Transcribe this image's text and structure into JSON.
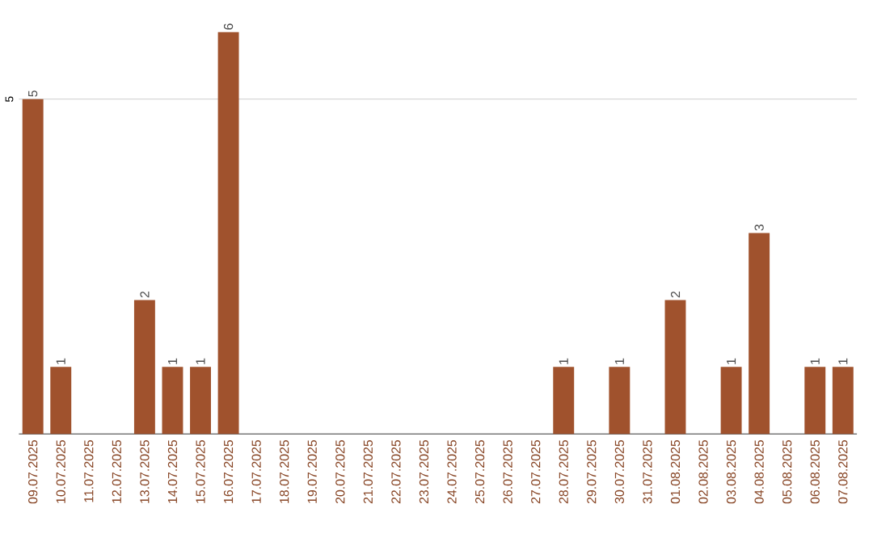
{
  "chart_data": {
    "type": "bar",
    "categories": [
      "09.07.2025",
      "10.07.2025",
      "11.07.2025",
      "12.07.2025",
      "13.07.2025",
      "14.07.2025",
      "15.07.2025",
      "16.07.2025",
      "17.07.2025",
      "18.07.2025",
      "19.07.2025",
      "20.07.2025",
      "21.07.2025",
      "22.07.2025",
      "23.07.2025",
      "24.07.2025",
      "25.07.2025",
      "26.07.2025",
      "27.07.2025",
      "28.07.2025",
      "29.07.2025",
      "30.07.2025",
      "31.07.2025",
      "01.08.2025",
      "02.08.2025",
      "03.08.2025",
      "04.08.2025",
      "05.08.2025",
      "06.08.2025",
      "07.08.2025"
    ],
    "values": [
      5,
      1,
      0,
      0,
      2,
      1,
      1,
      6,
      0,
      0,
      0,
      0,
      0,
      0,
      0,
      0,
      0,
      0,
      0,
      1,
      0,
      1,
      0,
      2,
      0,
      1,
      3,
      0,
      1,
      1
    ],
    "value_labels": [
      "5",
      "1",
      null,
      null,
      "2",
      "1",
      "1",
      "6",
      null,
      null,
      null,
      null,
      null,
      null,
      null,
      null,
      null,
      null,
      null,
      "1",
      null,
      "1",
      null,
      "2",
      null,
      "1",
      "3",
      null,
      "1",
      "1"
    ],
    "color": "#a0522d",
    "ylim": [
      0,
      6
    ],
    "yticks": [
      5
    ],
    "grid": "y"
  }
}
